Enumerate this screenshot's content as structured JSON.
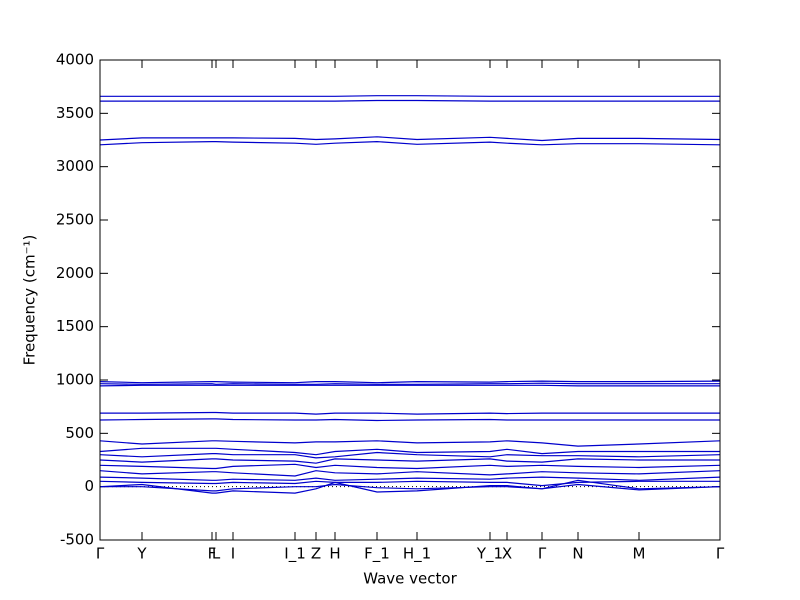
{
  "chart_data": {
    "type": "line",
    "xlabel": "Wave vector",
    "ylabel": "Frequency (cm⁻¹)",
    "color": "#0000cc",
    "zero_line": true,
    "xlim": [
      0,
      620
    ],
    "xticks": [
      {
        "value": 0,
        "label": "Γ"
      },
      {
        "value": 42,
        "label": "Y"
      },
      {
        "value": 112,
        "label": "F"
      },
      {
        "value": 116,
        "label": "L"
      },
      {
        "value": 133,
        "label": "I"
      },
      {
        "value": 195,
        "label": "I_1"
      },
      {
        "value": 216,
        "label": "Z"
      },
      {
        "value": 235,
        "label": "H"
      },
      {
        "value": 277,
        "label": "F_1"
      },
      {
        "value": 317,
        "label": "H_1"
      },
      {
        "value": 390,
        "label": "Y_1"
      },
      {
        "value": 407,
        "label": "X"
      },
      {
        "value": 442,
        "label": "Γ"
      },
      {
        "value": 478,
        "label": "N"
      },
      {
        "value": 539,
        "label": "M"
      },
      {
        "value": 620,
        "label": "Γ"
      }
    ],
    "x": [
      0,
      42,
      112,
      116,
      133,
      195,
      216,
      235,
      277,
      317,
      390,
      407,
      442,
      478,
      539,
      620
    ],
    "ylim": [
      -500,
      4000
    ],
    "yticks": [
      -500,
      0,
      500,
      1000,
      1500,
      2000,
      2500,
      3000,
      3500,
      4000
    ],
    "series": [
      {
        "values": [
          3660,
          3660,
          3660,
          3660,
          3660,
          3660,
          3660,
          3660,
          3665,
          3665,
          3660,
          3660,
          3660,
          3660,
          3660,
          3660
        ]
      },
      {
        "values": [
          3615,
          3615,
          3615,
          3615,
          3615,
          3615,
          3615,
          3615,
          3620,
          3620,
          3615,
          3615,
          3615,
          3615,
          3615,
          3615
        ]
      },
      {
        "values": [
          3250,
          3270,
          3270,
          3270,
          3270,
          3265,
          3255,
          3260,
          3280,
          3255,
          3275,
          3265,
          3245,
          3265,
          3265,
          3255
        ]
      },
      {
        "values": [
          3205,
          3225,
          3235,
          3235,
          3230,
          3220,
          3210,
          3220,
          3235,
          3210,
          3230,
          3220,
          3205,
          3215,
          3215,
          3205
        ]
      },
      {
        "values": [
          985,
          975,
          985,
          985,
          980,
          975,
          985,
          985,
          975,
          985,
          980,
          985,
          990,
          985,
          985,
          990
        ]
      },
      {
        "values": [
          965,
          960,
          965,
          960,
          965,
          960,
          960,
          965,
          960,
          960,
          965,
          965,
          970,
          965,
          965,
          965
        ]
      },
      {
        "values": [
          945,
          950,
          950,
          950,
          950,
          950,
          950,
          950,
          950,
          950,
          950,
          950,
          950,
          945,
          945,
          945
        ]
      },
      {
        "values": [
          690,
          690,
          695,
          695,
          690,
          690,
          680,
          690,
          690,
          680,
          690,
          685,
          690,
          690,
          690,
          690
        ]
      },
      {
        "values": [
          625,
          630,
          635,
          635,
          630,
          625,
          625,
          630,
          620,
          625,
          630,
          625,
          625,
          625,
          625,
          625
        ]
      },
      {
        "values": [
          430,
          400,
          430,
          430,
          425,
          410,
          420,
          420,
          430,
          410,
          420,
          430,
          410,
          380,
          400,
          430
        ]
      },
      {
        "values": [
          330,
          360,
          360,
          360,
          350,
          320,
          300,
          330,
          350,
          320,
          330,
          350,
          310,
          330,
          330,
          330
        ]
      },
      {
        "values": [
          300,
          280,
          310,
          310,
          300,
          300,
          270,
          280,
          320,
          300,
          280,
          300,
          290,
          290,
          280,
          300
        ]
      },
      {
        "values": [
          250,
          230,
          260,
          260,
          250,
          240,
          220,
          260,
          250,
          240,
          260,
          240,
          230,
          260,
          250,
          250
        ]
      },
      {
        "values": [
          200,
          190,
          170,
          170,
          190,
          210,
          180,
          200,
          180,
          170,
          200,
          190,
          200,
          190,
          180,
          200
        ]
      },
      {
        "values": [
          150,
          120,
          140,
          140,
          130,
          100,
          150,
          130,
          120,
          140,
          110,
          120,
          140,
          130,
          120,
          150
        ]
      },
      {
        "values": [
          90,
          80,
          60,
          60,
          70,
          60,
          80,
          60,
          70,
          80,
          70,
          80,
          90,
          80,
          60,
          90
        ]
      },
      {
        "values": [
          50,
          40,
          30,
          30,
          40,
          30,
          50,
          40,
          40,
          50,
          40,
          40,
          10,
          40,
          50,
          50
        ]
      },
      {
        "values": [
          0,
          20,
          -60,
          -60,
          -40,
          -60,
          -20,
          40,
          -50,
          -40,
          10,
          10,
          -20,
          60,
          -20,
          0
        ]
      },
      {
        "values": [
          0,
          0,
          -40,
          -40,
          -20,
          0,
          0,
          20,
          -10,
          -20,
          0,
          0,
          -20,
          20,
          -30,
          0
        ]
      }
    ]
  }
}
